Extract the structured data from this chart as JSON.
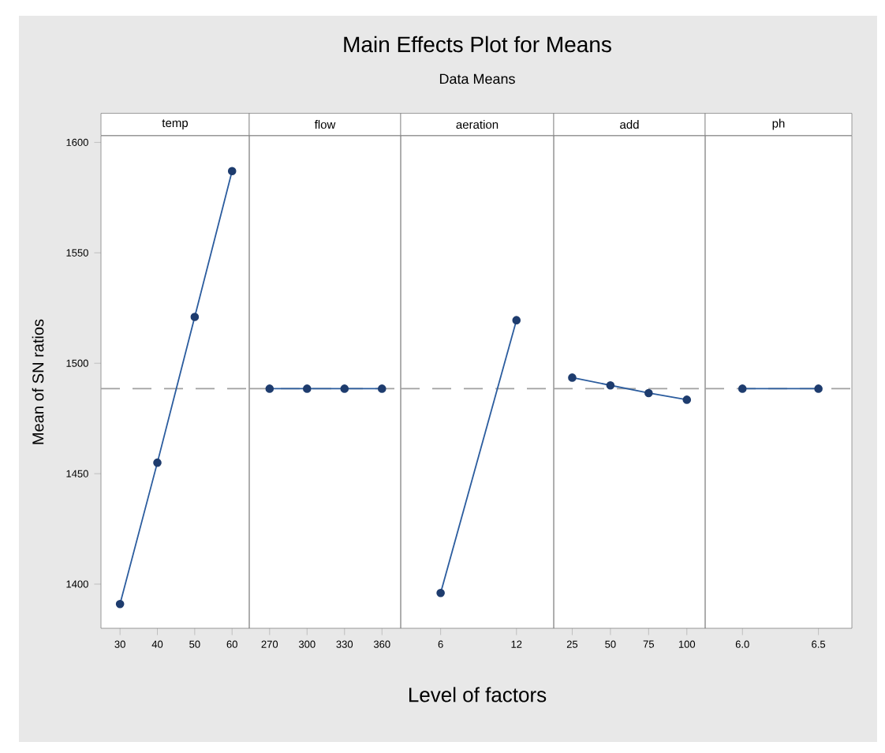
{
  "chart_data": [
    {
      "type": "line",
      "title": "temp",
      "ylabel": "Mean of SN ratios",
      "x": [
        30,
        40,
        50,
        60
      ],
      "values": [
        1391,
        1455,
        1521,
        1587
      ],
      "color": "#2b5c9e",
      "xlim": [
        24.9,
        64.6
      ],
      "xticks": [
        30,
        40,
        50,
        60
      ],
      "ylim": [
        1380,
        1603
      ],
      "yticks": [
        1400,
        1450,
        1500,
        1550,
        1600
      ],
      "marker": "circle",
      "line_style": "solid",
      "grid": false,
      "ref_lines": [
        {
          "axis": "y",
          "value": 1488.5,
          "color": "#a0a0a0",
          "line_style": "dashed"
        }
      ]
    },
    {
      "type": "line",
      "title": "flow",
      "x": [
        270,
        300,
        330,
        360
      ],
      "values": [
        1488.5,
        1488.5,
        1488.5,
        1488.5
      ],
      "color": "#2b5c9e",
      "xlim": [
        253.7,
        375
      ],
      "xticks": [
        270,
        300,
        330,
        360
      ],
      "ylim": [
        1380,
        1603
      ],
      "tick_labels": "x",
      "marker": "circle",
      "line_style": "solid",
      "grid": false,
      "ref_lines": [
        {
          "axis": "y",
          "value": 1488.5,
          "color": "#a0a0a0",
          "line_style": "dashed"
        }
      ]
    },
    {
      "type": "line",
      "title": "Main Effects Plot for Means",
      "subtitle": "Data Means",
      "xlabel": "Level of factors",
      "annotations": [
        "aeration"
      ],
      "x": [
        6,
        12
      ],
      "values": [
        1396,
        1519.5
      ],
      "color": "#2b5c9e",
      "xlim": [
        2.84,
        14.95
      ],
      "xticks": [
        6,
        12
      ],
      "ylim": [
        1380,
        1603
      ],
      "tick_labels": "x",
      "marker": "circle",
      "line_style": "solid",
      "grid": false,
      "ref_lines": [
        {
          "axis": "y",
          "value": 1488.5,
          "color": "#a0a0a0",
          "line_style": "dashed"
        }
      ]
    },
    {
      "type": "line",
      "title": "add",
      "x": [
        25,
        50,
        75,
        100
      ],
      "values": [
        1493.5,
        1490,
        1486.5,
        1483.5
      ],
      "color": "#2b5c9e",
      "xlim": [
        12.9,
        112
      ],
      "xticks": [
        25,
        50,
        75,
        100
      ],
      "ylim": [
        1380,
        1603
      ],
      "tick_labels": "x",
      "marker": "circle",
      "line_style": "solid",
      "grid": false,
      "ref_lines": [
        {
          "axis": "y",
          "value": 1488.5,
          "color": "#a0a0a0",
          "line_style": "dashed"
        }
      ]
    },
    {
      "type": "line",
      "title": "ph",
      "x": [
        6.0,
        6.5
      ],
      "values": [
        1488.5,
        1488.5
      ],
      "color": "#2b5c9e",
      "xlim": [
        5.755,
        6.72
      ],
      "xticks": [
        {
          "value": 6.0,
          "label": "6.0"
        },
        {
          "value": 6.5,
          "label": "6.5"
        }
      ],
      "ylim": [
        1380,
        1603
      ],
      "tick_labels": "x",
      "marker": "circle",
      "line_style": "solid",
      "grid": false,
      "ref_lines": [
        {
          "axis": "y",
          "value": 1488.5,
          "color": "#a0a0a0",
          "line_style": "dashed"
        }
      ]
    }
  ]
}
